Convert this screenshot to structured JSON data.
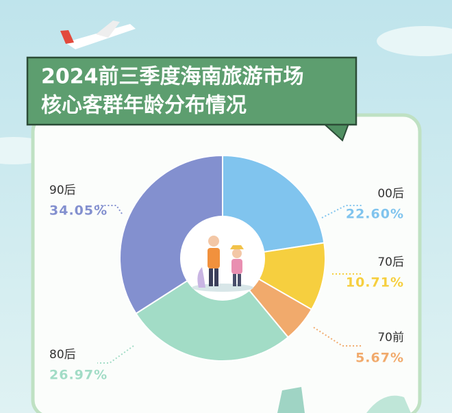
{
  "chart_data": {
    "type": "pie",
    "title": [
      "2024前三季度海南旅游市场",
      "核心客群年龄分布情况"
    ],
    "categories": [
      "00后",
      "70后",
      "70前",
      "80后",
      "90后"
    ],
    "values": [
      22.6,
      10.71,
      5.67,
      26.97,
      34.05
    ],
    "value_labels": [
      "22.60%",
      "10.71%",
      "5.67%",
      "26.97%",
      "34.05%"
    ],
    "colors": [
      "#80c4ee",
      "#f6cf3f",
      "#f1aa6c",
      "#a2dcc6",
      "#8390cf"
    ]
  }
}
